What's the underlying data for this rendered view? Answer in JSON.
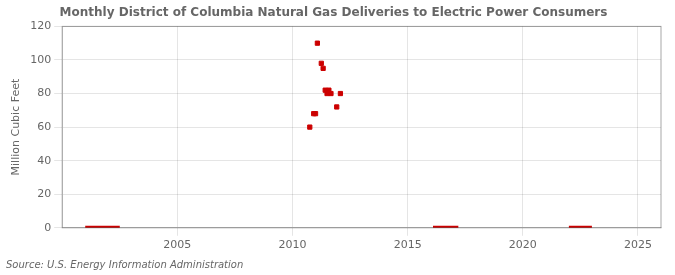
{
  "chart_data": {
    "type": "scatter",
    "title": "Monthly District of Columbia Natural Gas Deliveries to Electric Power Consumers",
    "y_label": "Million Cubic Feet",
    "annotations": [
      "Source: U.S. Energy Information Administration"
    ],
    "x": [
      2010.75,
      2010.92,
      2011.0,
      2011.08,
      2011.25,
      2011.33,
      2011.42,
      2011.5,
      2011.58,
      2011.67,
      2011.92,
      2012.08
    ],
    "values": [
      60,
      68,
      68,
      110,
      98,
      95,
      82,
      80,
      82,
      80,
      72,
      80
    ],
    "zero_bars": [
      {
        "x_start": 2001.0,
        "x_end": 2002.5,
        "y": 0
      },
      {
        "x_start": 2016.1,
        "x_end": 2017.2,
        "y": 0
      },
      {
        "x_start": 2022.0,
        "x_end": 2023.0,
        "y": 0
      }
    ],
    "color": "#cc0000",
    "marker": "square",
    "xlim": [
      2000,
      2026
    ],
    "xticks": [
      2005,
      2010,
      2015,
      2020,
      2025
    ],
    "ylim": [
      0,
      120
    ],
    "yticks": [
      0,
      20,
      40,
      60,
      80,
      100,
      120
    ],
    "grid": true
  }
}
